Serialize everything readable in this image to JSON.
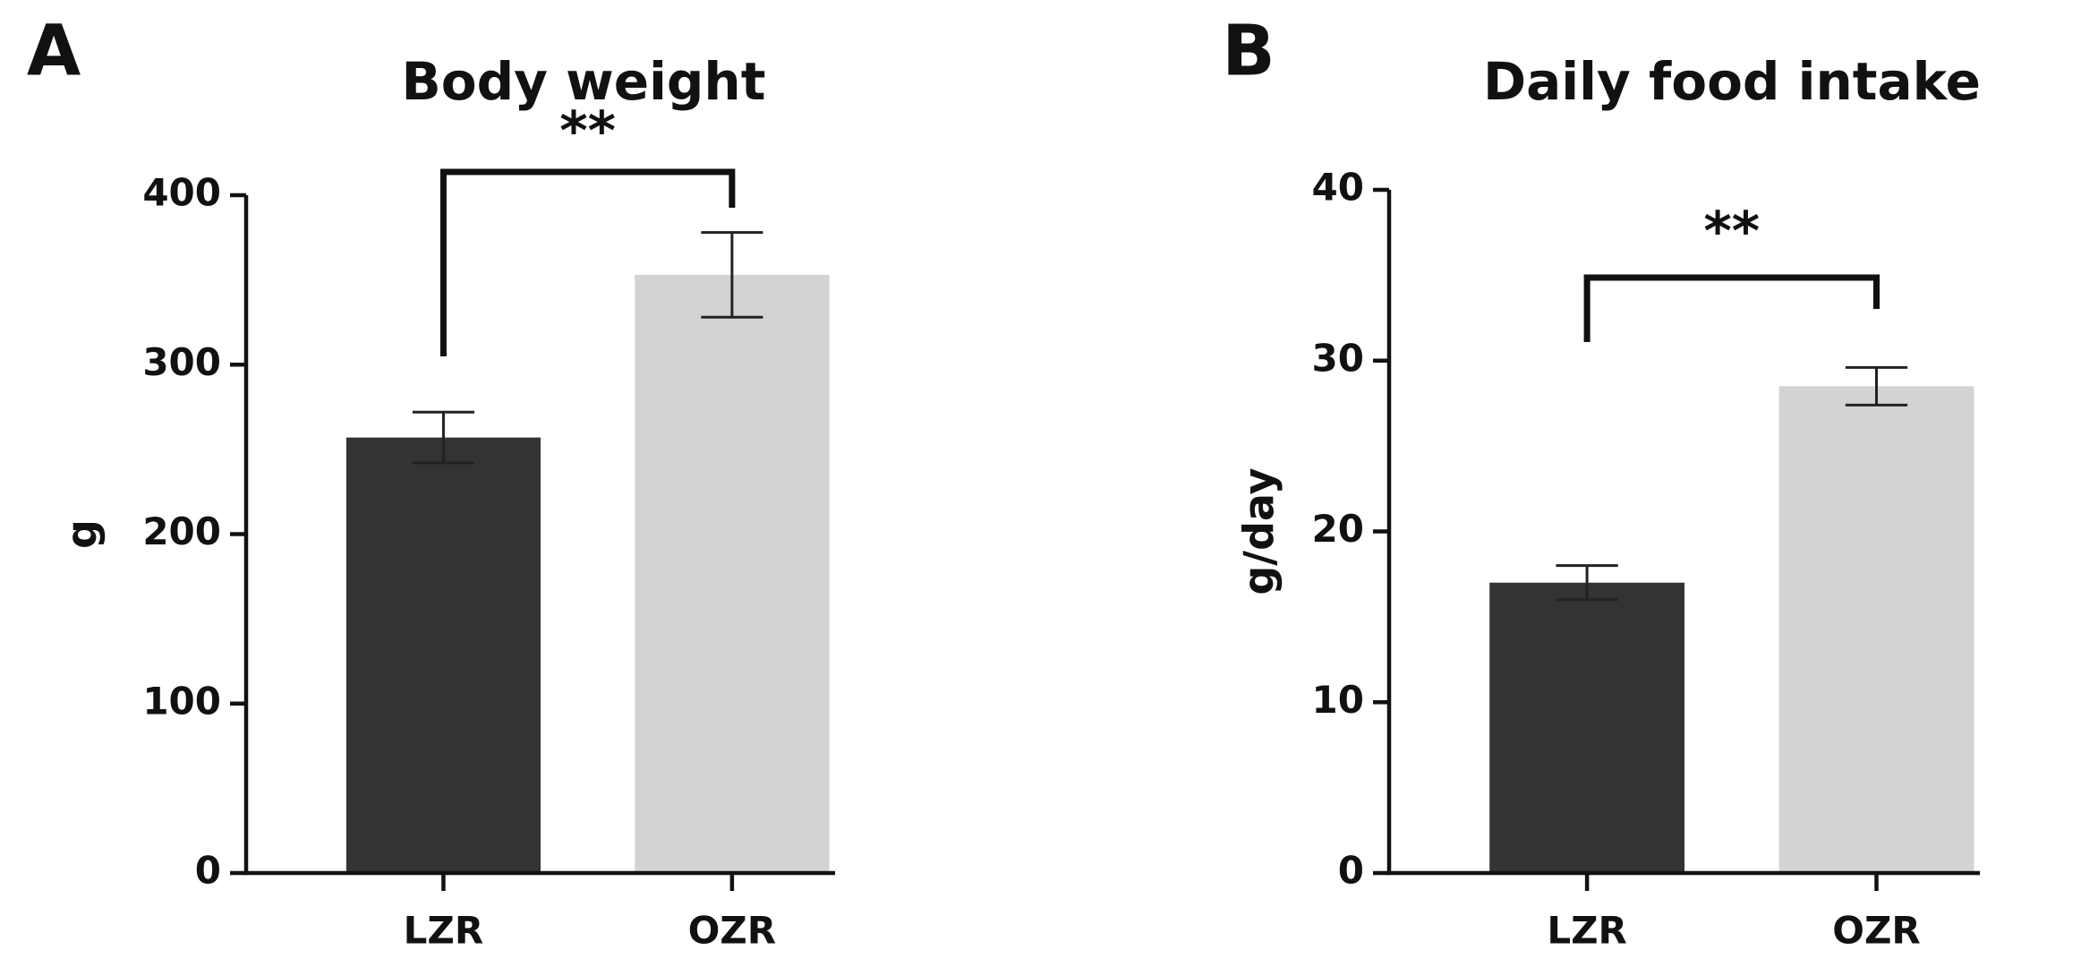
{
  "chart_data": [
    {
      "type": "bar",
      "panel": "A",
      "title": "Body weight",
      "y_label": "g",
      "categories": [
        "LZR",
        "OZR"
      ],
      "values": [
        257,
        353
      ],
      "errors": [
        15,
        25
      ],
      "colors": [
        "#333333",
        "#d3d3d3"
      ],
      "ylim": [
        0,
        400
      ],
      "yticks": [
        0,
        100,
        200,
        300,
        400
      ],
      "annotation": "**"
    },
    {
      "type": "bar",
      "panel": "B",
      "title": "Daily food intake",
      "y_label": "g/day",
      "categories": [
        "LZR",
        "OZR"
      ],
      "values": [
        17,
        28.5
      ],
      "errors": [
        1,
        1.1
      ],
      "colors": [
        "#333333",
        "#d3d3d3"
      ],
      "ylim": [
        0,
        40
      ],
      "yticks": [
        0,
        10,
        20,
        30,
        40
      ],
      "annotation": "**"
    }
  ]
}
